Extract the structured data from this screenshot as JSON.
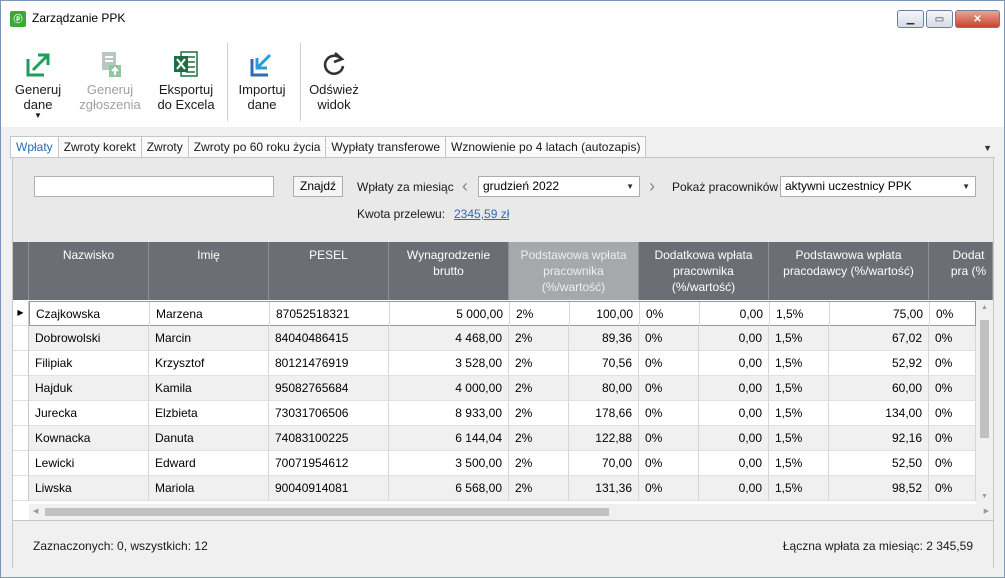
{
  "window": {
    "title": "Zarządzanie PPK"
  },
  "toolbar": {
    "generate": {
      "line1": "Generuj",
      "line2": "dane"
    },
    "generate_notifications": {
      "line1": "Generuj",
      "line2": "zgłoszenia"
    },
    "export": {
      "line1": "Eksportuj",
      "line2": "do Excela"
    },
    "import": {
      "line1": "Importuj",
      "line2": "dane"
    },
    "refresh": {
      "line1": "Odśwież",
      "line2": "widok"
    }
  },
  "tabs": [
    "Wpłaty",
    "Zwroty korekt",
    "Zwroty",
    "Zwroty po 60 roku życia",
    "Wypłaty transferowe",
    "Wznowienie po 4 latach (autozapis)"
  ],
  "filter": {
    "search_value": "",
    "find_label": "Znajdź",
    "month_label": "Wpłaty za miesiąc",
    "month_value": "grudzień 2022",
    "employees_label": "Pokaż pracowników",
    "employees_value": "aktywni uczestnicy PPK",
    "transfer_label": "Kwota przelewu:",
    "transfer_value": "2345,59 zł"
  },
  "grid": {
    "columns": {
      "surname": "Nazwisko",
      "name": "Imię",
      "pesel": "PESEL",
      "gross": "Wynagrodzenie brutto",
      "emp_basic": "Podstawowa wpłata pracownika (%/wartość)",
      "emp_extra": "Dodatkowa wpłata pracownika (%/wartość)",
      "er_basic": "Podstawowa wpłata pracodawcy (%/wartość)",
      "er_extra_partial": "Dodat pra (%"
    },
    "rows": [
      {
        "surname": "Czajkowska",
        "name": "Marzena",
        "pesel": "87052518321",
        "gross": "5 000,00",
        "ebp": "2%",
        "ebv": "100,00",
        "eep": "0%",
        "eev": "0,00",
        "rbp": "1,5%",
        "rbv": "75,00",
        "rep": "0%"
      },
      {
        "surname": "Dobrowolski",
        "name": "Marcin",
        "pesel": "84040486415",
        "gross": "4 468,00",
        "ebp": "2%",
        "ebv": "89,36",
        "eep": "0%",
        "eev": "0,00",
        "rbp": "1,5%",
        "rbv": "67,02",
        "rep": "0%"
      },
      {
        "surname": "Filipiak",
        "name": "Krzysztof",
        "pesel": "80121476919",
        "gross": "3 528,00",
        "ebp": "2%",
        "ebv": "70,56",
        "eep": "0%",
        "eev": "0,00",
        "rbp": "1,5%",
        "rbv": "52,92",
        "rep": "0%"
      },
      {
        "surname": "Hajduk",
        "name": "Kamila",
        "pesel": "95082765684",
        "gross": "4 000,00",
        "ebp": "2%",
        "ebv": "80,00",
        "eep": "0%",
        "eev": "0,00",
        "rbp": "1,5%",
        "rbv": "60,00",
        "rep": "0%"
      },
      {
        "surname": "Jurecka",
        "name": "Elzbieta",
        "pesel": "73031706506",
        "gross": "8 933,00",
        "ebp": "2%",
        "ebv": "178,66",
        "eep": "0%",
        "eev": "0,00",
        "rbp": "1,5%",
        "rbv": "134,00",
        "rep": "0%"
      },
      {
        "surname": "Kownacka",
        "name": "Danuta",
        "pesel": "74083100225",
        "gross": "6 144,04",
        "ebp": "2%",
        "ebv": "122,88",
        "eep": "0%",
        "eev": "0,00",
        "rbp": "1,5%",
        "rbv": "92,16",
        "rep": "0%"
      },
      {
        "surname": "Lewicki",
        "name": "Edward",
        "pesel": "70071954612",
        "gross": "3 500,00",
        "ebp": "2%",
        "ebv": "70,00",
        "eep": "0%",
        "eev": "0,00",
        "rbp": "1,5%",
        "rbv": "52,50",
        "rep": "0%"
      },
      {
        "surname": "Liwska",
        "name": "Mariola",
        "pesel": "90040914081",
        "gross": "6 568,00",
        "ebp": "2%",
        "ebv": "131,36",
        "eep": "0%",
        "eev": "0,00",
        "rbp": "1,5%",
        "rbv": "98,52",
        "rep": "0%"
      }
    ]
  },
  "footer": {
    "selected": "Zaznaczonych: 0, wszystkich: 12",
    "total": "Łączna wpłata za miesiąc: 2 345,59"
  },
  "colors": {
    "header_bg": "#6b6e74",
    "header_selected_bg": "#a6a8ab",
    "accent": "#2b6cb8"
  }
}
